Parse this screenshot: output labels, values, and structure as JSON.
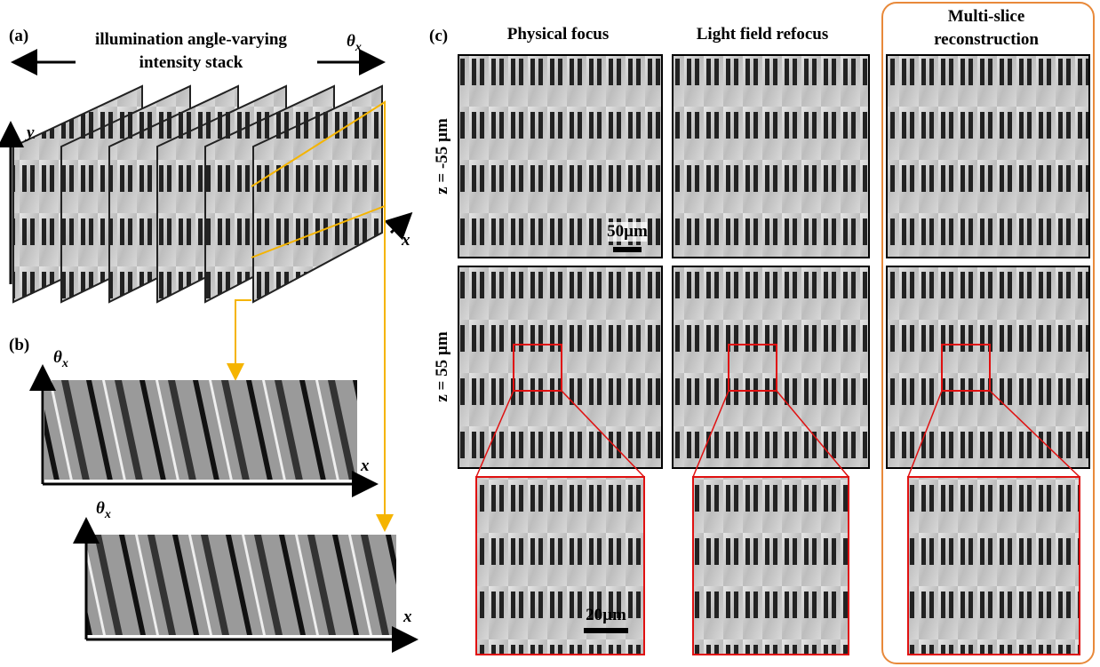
{
  "panel_a": {
    "label": "(a)",
    "title_lines": [
      "illumination angle-varying",
      "intensity stack"
    ],
    "arrow_label": {
      "symbol": "θ",
      "subscript": "x"
    },
    "y_axis": "y",
    "x_axis": "x"
  },
  "panel_b": {
    "label": "(b)",
    "plots": [
      {
        "y_axis": {
          "symbol": "θ",
          "subscript": "x"
        },
        "x_axis": "x"
      },
      {
        "y_axis": {
          "symbol": "θ",
          "subscript": "x"
        },
        "x_axis": "x"
      }
    ]
  },
  "panel_c": {
    "label": "(c)",
    "columns": [
      "Physical focus",
      "Light field refocus",
      [
        "Multi-slice",
        "reconstruction"
      ]
    ],
    "rows": [
      "z = -55 µm",
      "z = 55 µm"
    ],
    "scale_bars": [
      "50µm",
      "20µm"
    ]
  }
}
